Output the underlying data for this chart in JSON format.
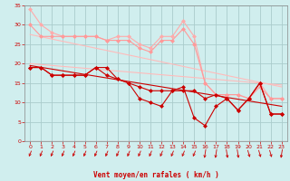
{
  "background_color": "#d0eeee",
  "grid_color": "#aacccc",
  "xlabel": "Vent moyen/en rafales ( km/h )",
  "xlabel_color": "#cc0000",
  "tick_color": "#cc0000",
  "xlim": [
    -0.5,
    23.5
  ],
  "ylim": [
    0,
    35
  ],
  "yticks": [
    0,
    5,
    10,
    15,
    20,
    25,
    30,
    35
  ],
  "xticks": [
    0,
    1,
    2,
    3,
    4,
    5,
    6,
    7,
    8,
    9,
    10,
    11,
    12,
    13,
    14,
    15,
    16,
    17,
    18,
    19,
    20,
    21,
    22,
    23
  ],
  "line1_x": [
    0,
    1,
    2,
    3,
    4,
    5,
    6,
    7,
    8,
    9,
    10,
    11,
    12,
    13,
    14,
    15,
    16,
    17,
    18,
    19,
    20,
    21,
    22,
    23
  ],
  "line1_y": [
    34,
    30,
    28,
    27,
    27,
    27,
    27,
    26,
    27,
    27,
    25,
    24,
    27,
    27,
    31,
    27,
    15,
    12,
    12,
    12,
    11,
    15,
    11,
    11
  ],
  "line1_color": "#ffaaaa",
  "line2_x": [
    0,
    1,
    2,
    3,
    4,
    5,
    6,
    7,
    8,
    9,
    10,
    11,
    12,
    13,
    14,
    15,
    16,
    17,
    18,
    19,
    20,
    21,
    22,
    23
  ],
  "line2_y": [
    30,
    27,
    27,
    27,
    27,
    27,
    27,
    26,
    26,
    26,
    24,
    23,
    26,
    26,
    29,
    25,
    15,
    12,
    12,
    12,
    11,
    14,
    11,
    11
  ],
  "line2_color": "#ff9999",
  "line3_x": [
    0,
    1,
    2,
    3,
    4,
    5,
    6,
    7,
    8,
    9,
    10,
    11,
    12,
    13,
    14,
    15,
    16,
    17,
    18,
    19,
    20,
    21,
    22,
    23
  ],
  "line3_y": [
    19,
    19,
    17,
    17,
    17,
    17,
    19,
    19,
    16,
    15,
    14,
    13,
    13,
    13,
    13,
    13,
    11,
    12,
    11,
    8,
    11,
    15,
    7,
    7
  ],
  "line3_color": "#cc0000",
  "line4_x": [
    0,
    1,
    2,
    3,
    4,
    5,
    6,
    7,
    8,
    9,
    10,
    11,
    12,
    13,
    14,
    15,
    16,
    17,
    18,
    19,
    20,
    21,
    22,
    23
  ],
  "line4_y": [
    19,
    19,
    17,
    17,
    17,
    17,
    19,
    17,
    16,
    15,
    11,
    10,
    9,
    13,
    14,
    6,
    4,
    9,
    11,
    8,
    11,
    15,
    7,
    7
  ],
  "line4_color": "#cc0000",
  "trendline1_x": [
    0,
    23
  ],
  "trendline1_y": [
    27.5,
    14.0
  ],
  "trendline1_color": "#ffbbbb",
  "trendline2_x": [
    0,
    23
  ],
  "trendline2_y": [
    20.0,
    14.5
  ],
  "trendline2_color": "#ffbbbb",
  "trendline3_x": [
    0,
    23
  ],
  "trendline3_y": [
    19.5,
    9.0
  ],
  "trendline3_color": "#cc0000",
  "wind_arrows_x": [
    0,
    1,
    2,
    3,
    4,
    5,
    6,
    7,
    8,
    9,
    10,
    11,
    12,
    13,
    14,
    15,
    16,
    17,
    18,
    19,
    20,
    21,
    22,
    23
  ],
  "wind_arrow_angles": [
    225,
    225,
    225,
    225,
    225,
    225,
    225,
    225,
    225,
    225,
    225,
    225,
    225,
    225,
    225,
    225,
    200,
    200,
    160,
    160,
    145,
    145,
    145,
    200
  ]
}
